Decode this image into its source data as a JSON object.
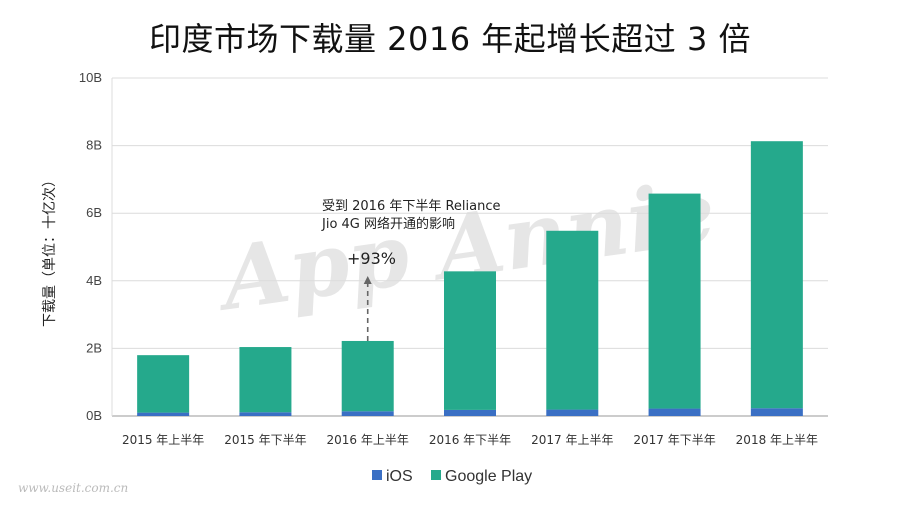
{
  "title": "印度市场下载量 2016 年起增长超过 3 倍",
  "watermark": "App Annie",
  "site_watermark": "www.useit.com.cn",
  "chart_data": {
    "type": "bar",
    "stacked": true,
    "categories": [
      "2015 年上半年",
      "2015 年下半年",
      "2016 年上半年",
      "2016 年下半年",
      "2017 年上半年",
      "2017 年下半年",
      "2018 年上半年"
    ],
    "series": [
      {
        "name": "iOS",
        "color": "#3a6fc4",
        "values": [
          0.1,
          0.11,
          0.14,
          0.18,
          0.19,
          0.22,
          0.23
        ]
      },
      {
        "name": "Google Play",
        "color": "#25a98c",
        "values": [
          1.7,
          1.93,
          2.08,
          4.1,
          5.29,
          6.36,
          7.9
        ]
      }
    ],
    "ylabel": "下载量（单位：十亿次）",
    "ylim": [
      0,
      10
    ],
    "yticks": [
      0,
      2,
      4,
      6,
      8,
      10
    ],
    "ytick_labels": [
      "0B",
      "2B",
      "4B",
      "6B",
      "8B",
      "10B"
    ],
    "grid": true,
    "legend_position": "bottom",
    "annotation": {
      "text_line1": "受到 2016 年下半年 Reliance",
      "text_line2": "Jio 4G 网络开通的影响",
      "change": "+93%",
      "category_index": 2
    }
  }
}
